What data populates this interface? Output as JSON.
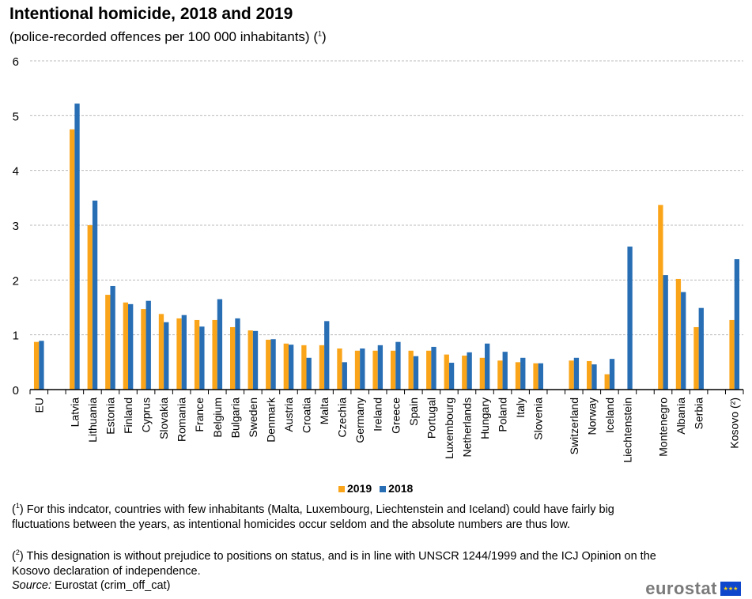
{
  "title": "Intentional homicide, 2018 and 2019",
  "subtitle": "(police-recorded offences per 100 000 inhabitants)",
  "subtitle_note": "1",
  "chart_data": {
    "type": "bar",
    "ylim": [
      0,
      6
    ],
    "yticks": [
      "0",
      "1",
      "2",
      "3",
      "4",
      "5",
      "6"
    ],
    "grid": true,
    "legend_position": "bottom",
    "categories": [
      "EU",
      "",
      "Latvia",
      "Lithuania",
      "Estonia",
      "Finland",
      "Cyprus",
      "Slovakia",
      "Romania",
      "France",
      "Belgium",
      "Bulgaria",
      "Sweden",
      "Denmark",
      "Austria",
      "Croatia",
      "Malta",
      "Czechia",
      "Germany",
      "Ireland",
      "Greece",
      "Spain",
      "Portugal",
      "Luxembourg",
      "Netherlands",
      "Hungary",
      "Poland",
      "Italy",
      "Slovenia",
      "",
      "Switzerland",
      "Norway",
      "Iceland",
      "Liechtenstein",
      "",
      "Montenegro",
      "Albania",
      "Serbia",
      "",
      "Kosovo (²)"
    ],
    "series": [
      {
        "name": "2019",
        "color": "#FAA519",
        "values": [
          0.87,
          null,
          4.75,
          3.0,
          1.73,
          1.59,
          1.47,
          1.38,
          1.3,
          1.27,
          1.27,
          1.14,
          1.08,
          0.91,
          0.84,
          0.81,
          0.81,
          0.75,
          0.71,
          0.71,
          0.71,
          0.71,
          0.71,
          0.64,
          0.62,
          0.58,
          0.53,
          0.5,
          0.48,
          null,
          0.53,
          0.52,
          0.28,
          null,
          null,
          3.37,
          2.02,
          1.14,
          null,
          1.27
        ]
      },
      {
        "name": "2018",
        "color": "#286EB4",
        "values": [
          0.89,
          null,
          5.22,
          3.45,
          1.89,
          1.56,
          1.62,
          1.23,
          1.36,
          1.15,
          1.65,
          1.3,
          1.07,
          0.92,
          0.82,
          0.58,
          1.25,
          0.5,
          0.75,
          0.81,
          0.87,
          0.61,
          0.78,
          0.49,
          0.68,
          0.84,
          0.69,
          0.58,
          0.48,
          null,
          0.58,
          0.46,
          0.56,
          2.61,
          null,
          2.09,
          1.78,
          1.49,
          null,
          2.38
        ]
      }
    ]
  },
  "footnotes": [
    {
      "mark": "1",
      "text": " For this indcator, countries with few inhabitants (Malta, Luxembourg, Liechtenstein and Iceland) could have fairly big fluctuations between the years, as intentional homicides occur seldom and the absolute numbers are thus low."
    },
    {
      "mark": "2",
      "text": " This designation is without prejudice to positions on status, and is in line with UNSCR 1244/1999 and the ICJ Opinion on the Kosovo declaration of independence."
    }
  ],
  "source_label": "Source:",
  "source_text": " Eurostat (crim_off_cat)",
  "logo": "eurostat"
}
